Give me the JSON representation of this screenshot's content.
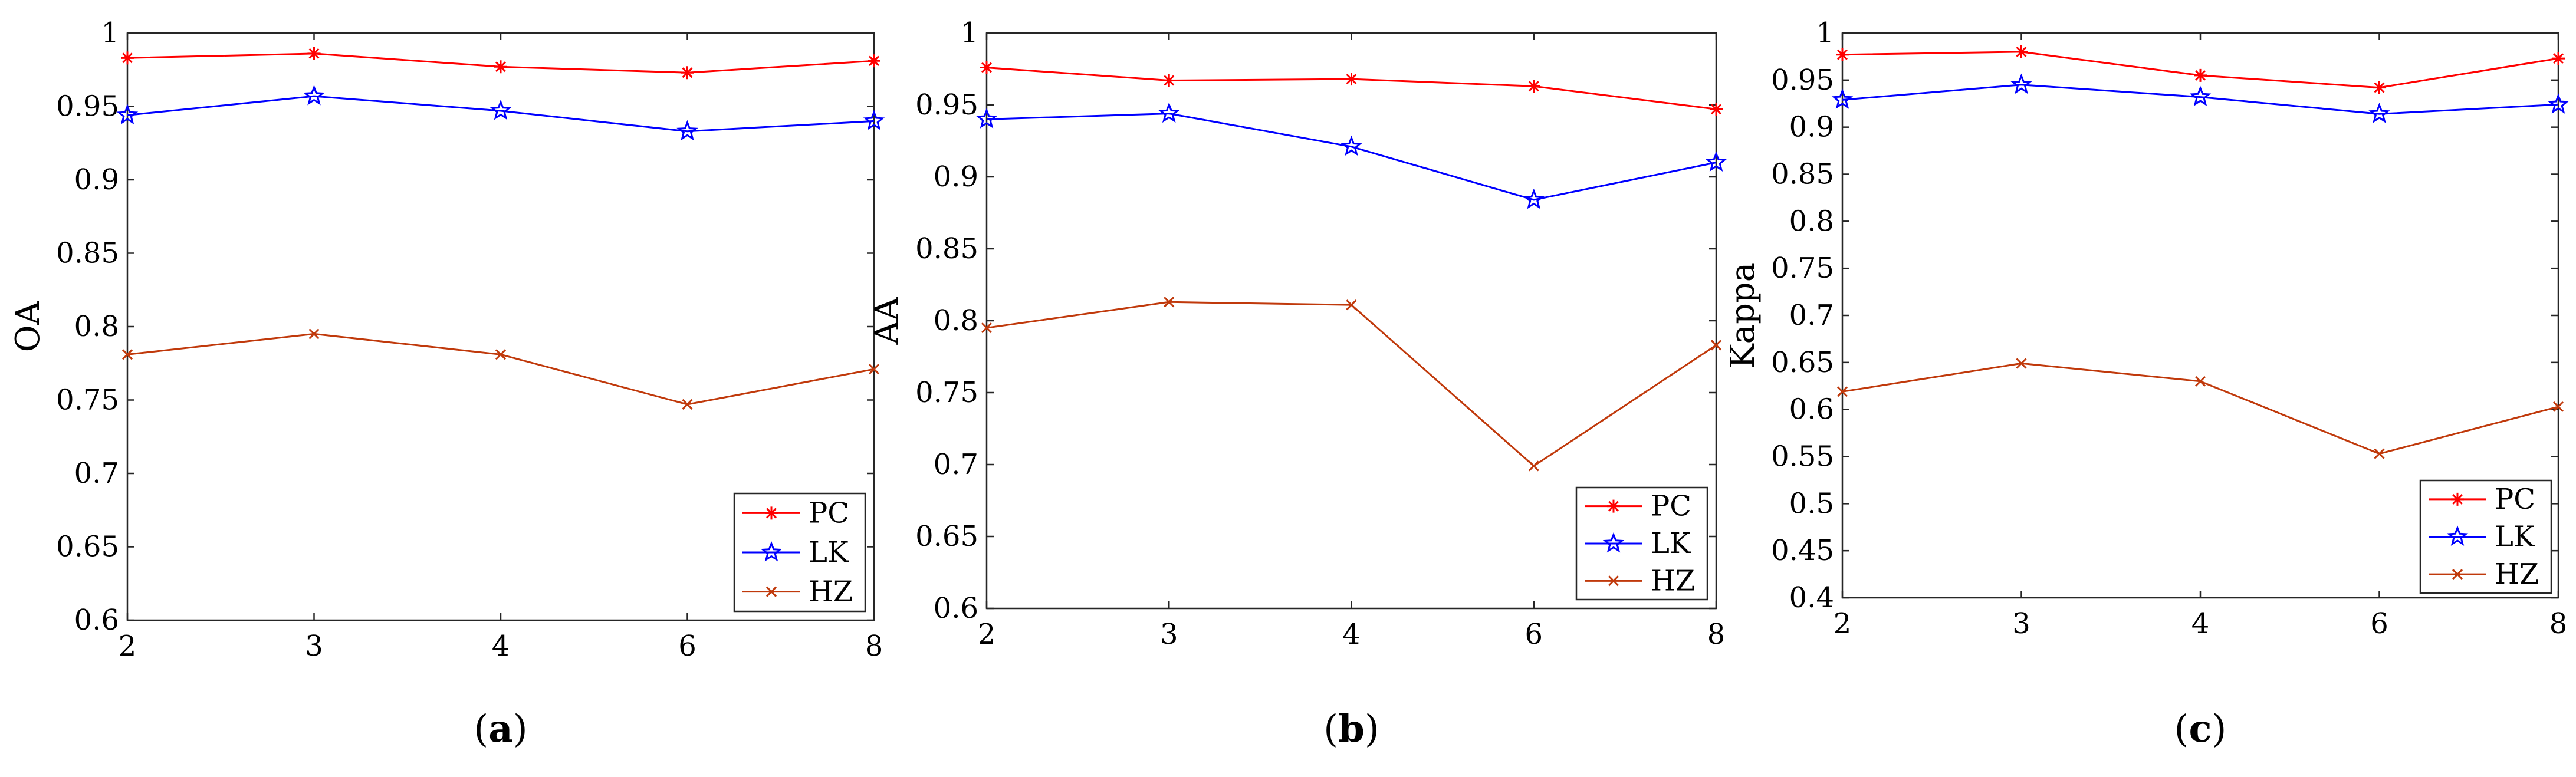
{
  "chart_data": [
    {
      "type": "line",
      "panel_label": "a",
      "title": "",
      "xlabel": "",
      "ylabel": "OA",
      "categories": [
        "2",
        "3",
        "4",
        "6",
        "8"
      ],
      "ylim": [
        0.6,
        1
      ],
      "yticks": [
        0.6,
        0.65,
        0.7,
        0.75,
        0.8,
        0.85,
        0.9,
        0.95,
        1
      ],
      "ytick_labels": [
        "0.6",
        "0.65",
        "0.7",
        "0.75",
        "0.8",
        "0.85",
        "0.9",
        "0.95",
        "1"
      ],
      "grid": false,
      "legend_position": "bottom-right",
      "series": [
        {
          "name": "PC",
          "values": [
            0.983,
            0.986,
            0.977,
            0.973,
            0.981
          ]
        },
        {
          "name": "LK",
          "values": [
            0.944,
            0.957,
            0.947,
            0.933,
            0.94
          ]
        },
        {
          "name": "HZ",
          "values": [
            0.781,
            0.795,
            0.781,
            0.747,
            0.771
          ]
        }
      ]
    },
    {
      "type": "line",
      "panel_label": "b",
      "title": "",
      "xlabel": "",
      "ylabel": "AA",
      "categories": [
        "2",
        "3",
        "4",
        "6",
        "8"
      ],
      "ylim": [
        0.6,
        1
      ],
      "yticks": [
        0.6,
        0.65,
        0.7,
        0.75,
        0.8,
        0.85,
        0.9,
        0.95,
        1
      ],
      "ytick_labels": [
        "0.6",
        "0.65",
        "0.7",
        "0.75",
        "0.8",
        "0.85",
        "0.9",
        "0.95",
        "1"
      ],
      "grid": false,
      "legend_position": "bottom-right",
      "series": [
        {
          "name": "PC",
          "values": [
            0.976,
            0.967,
            0.968,
            0.963,
            0.947
          ]
        },
        {
          "name": "LK",
          "values": [
            0.94,
            0.944,
            0.921,
            0.884,
            0.91
          ]
        },
        {
          "name": "HZ",
          "values": [
            0.795,
            0.813,
            0.811,
            0.699,
            0.783
          ]
        }
      ]
    },
    {
      "type": "line",
      "panel_label": "c",
      "title": "",
      "xlabel": "",
      "ylabel": "Kappa",
      "categories": [
        "2",
        "3",
        "4",
        "6",
        "8"
      ],
      "ylim": [
        0.4,
        1
      ],
      "yticks": [
        0.4,
        0.45,
        0.5,
        0.55,
        0.6,
        0.65,
        0.7,
        0.75,
        0.8,
        0.85,
        0.9,
        0.95,
        1
      ],
      "ytick_labels": [
        "0.4",
        "0.45",
        "0.5",
        "0.55",
        "0.6",
        "0.65",
        "0.7",
        "0.75",
        "0.8",
        "0.85",
        "0.9",
        "0.95",
        "1"
      ],
      "grid": false,
      "legend_position": "bottom-right",
      "series": [
        {
          "name": "PC",
          "values": [
            0.977,
            0.98,
            0.955,
            0.942,
            0.973
          ]
        },
        {
          "name": "LK",
          "values": [
            0.929,
            0.945,
            0.932,
            0.914,
            0.924
          ]
        },
        {
          "name": "HZ",
          "values": [
            0.619,
            0.649,
            0.63,
            0.553,
            0.603
          ]
        }
      ]
    }
  ],
  "series_colors": {
    "PC": "#ff0000",
    "LK": "#0000ff",
    "HZ": "#c0390b"
  },
  "series_markers": {
    "PC": "asterisk-marker",
    "LK": "star-marker",
    "HZ": "cross-marker"
  }
}
